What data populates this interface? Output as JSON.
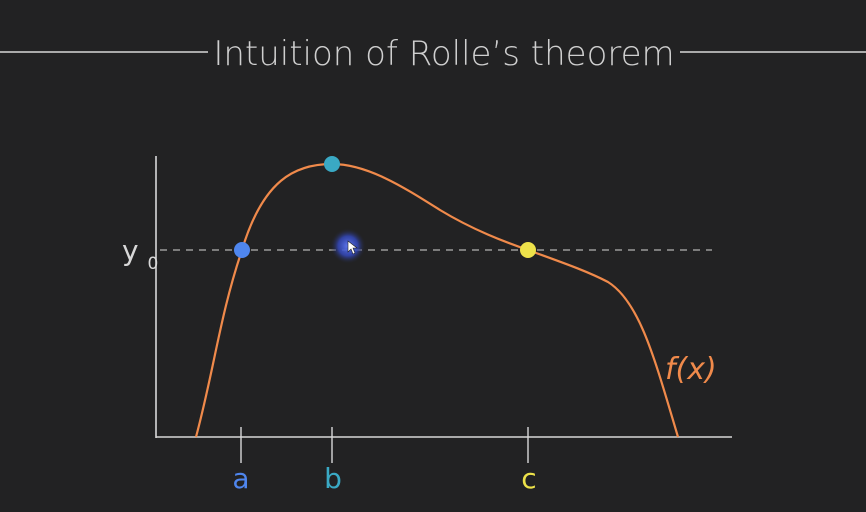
{
  "title": "Intuition of Rolle’s theorem",
  "y_axis_label": {
    "base": "y",
    "subscript": "0"
  },
  "function_label": "f(x)",
  "x_tick_labels": {
    "a": "a",
    "b": "b",
    "c": "c"
  },
  "colors": {
    "background": "#222223",
    "text": "#cfcfcf",
    "axis": "#d8d8d8",
    "curve": "#f08a4b",
    "guide_line": "#9a9a9a",
    "point_a": "#4f86ee",
    "point_b": "#3aa9c4",
    "point_c": "#ede24a",
    "cursor_glow": "#3f56c8"
  },
  "icons": {
    "cursor": "mouse-pointer-icon"
  }
}
